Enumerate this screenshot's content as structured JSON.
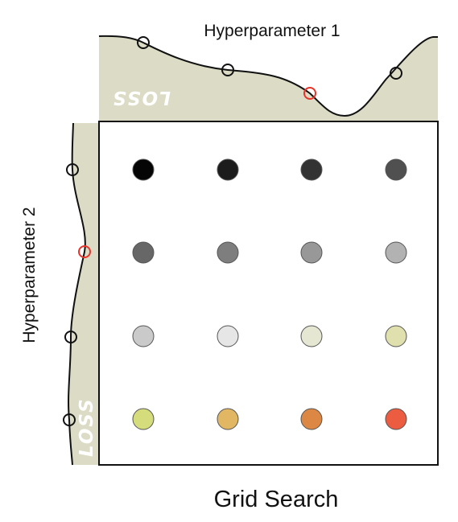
{
  "top_label": "Hyperparameter 1",
  "left_label": "Hyperparameter 2",
  "bottom_label": "Grid Search",
  "top_loss_label": "LOSS",
  "left_loss_label": "LOSS",
  "colors": {
    "loss_fill": "#dcdcc6",
    "curve": "#111111",
    "highlight": "#e8332a",
    "grid_frame": "#111111"
  },
  "grid": {
    "rows": 4,
    "cols": 4,
    "highlight_col": 3,
    "highlight_row": 2,
    "dot_colors": [
      [
        "#050505",
        "#1c1c1c",
        "#333333",
        "#505050"
      ],
      [
        "#676767",
        "#7e7e7e",
        "#989898",
        "#b2b2b2"
      ],
      [
        "#cacaca",
        "#e6e6e6",
        "#e6e7d2",
        "#dfe0ad"
      ],
      [
        "#d4dc7c",
        "#e2b764",
        "#dd8744",
        "#ec5c40"
      ]
    ]
  }
}
